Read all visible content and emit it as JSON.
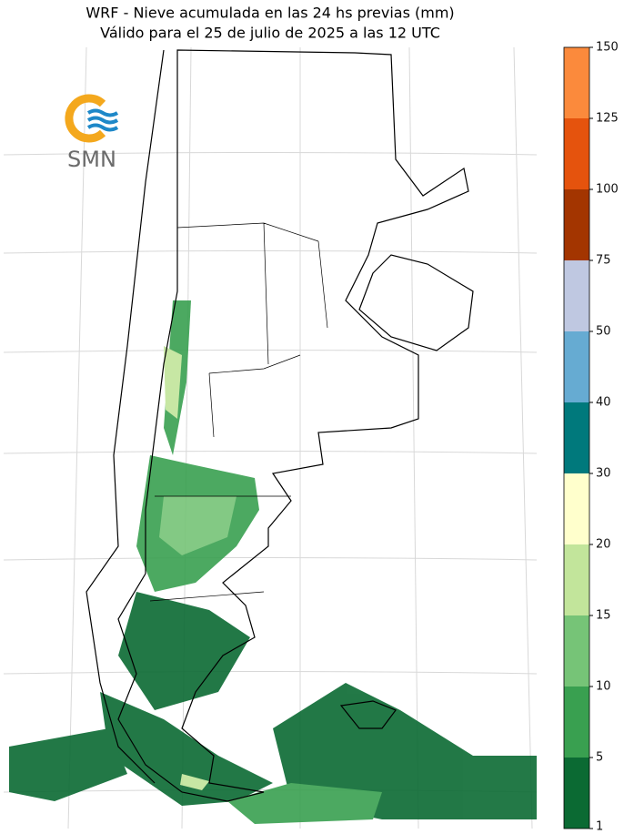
{
  "title": [
    "WRF - Nieve acumulada en las 24 hs previas (mm)",
    "Válido para el 25 de julio de 2025 a las 12 UTC"
  ],
  "logo": "SMN",
  "colorbar": {
    "bounds": [
      1,
      5,
      10,
      15,
      20,
      30,
      40,
      50,
      75,
      100,
      125,
      150
    ],
    "colors": [
      "#0b6a33",
      "#39a050",
      "#76c477",
      "#c2e59b",
      "#ffffcc",
      "#00797c",
      "#66abd2",
      "#bfc8e1",
      "#a33500",
      "#e5530d",
      "#fb8a3c"
    ]
  }
}
